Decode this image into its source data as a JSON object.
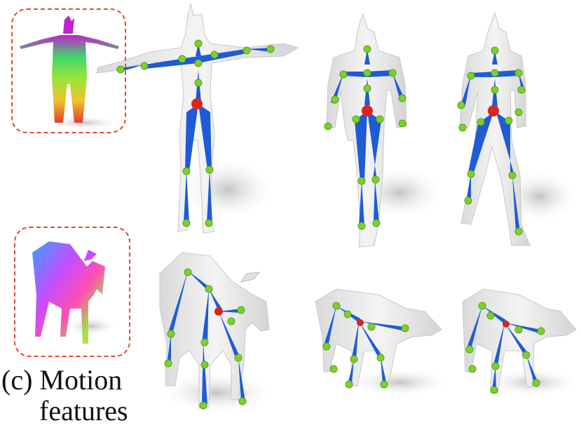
{
  "caption": {
    "line1": "(c) Motion",
    "line2": "features"
  },
  "colors": {
    "inset_border": "#e04a3a",
    "bone": "#1e5bd6",
    "joint": "#7bd12a",
    "root_joint": "#d8261c",
    "mesh": "#ebebeb",
    "shadow": "#cfcfcf"
  },
  "panels": [
    {
      "name": "human-motion-feature-inset",
      "content": "rainbow-colored human mesh"
    },
    {
      "name": "human-rest-pose",
      "content": "skeleton in T-pose"
    },
    {
      "name": "human-pose-2",
      "content": "skeleton standing"
    },
    {
      "name": "human-pose-3",
      "content": "skeleton walking"
    },
    {
      "name": "goat-motion-feature-inset",
      "content": "rainbow-colored goat mesh"
    },
    {
      "name": "goat-pose-1",
      "content": "goat skeleton front view"
    },
    {
      "name": "goat-pose-2",
      "content": "goat skeleton side view"
    },
    {
      "name": "goat-pose-3",
      "content": "goat skeleton side view walking"
    }
  ]
}
